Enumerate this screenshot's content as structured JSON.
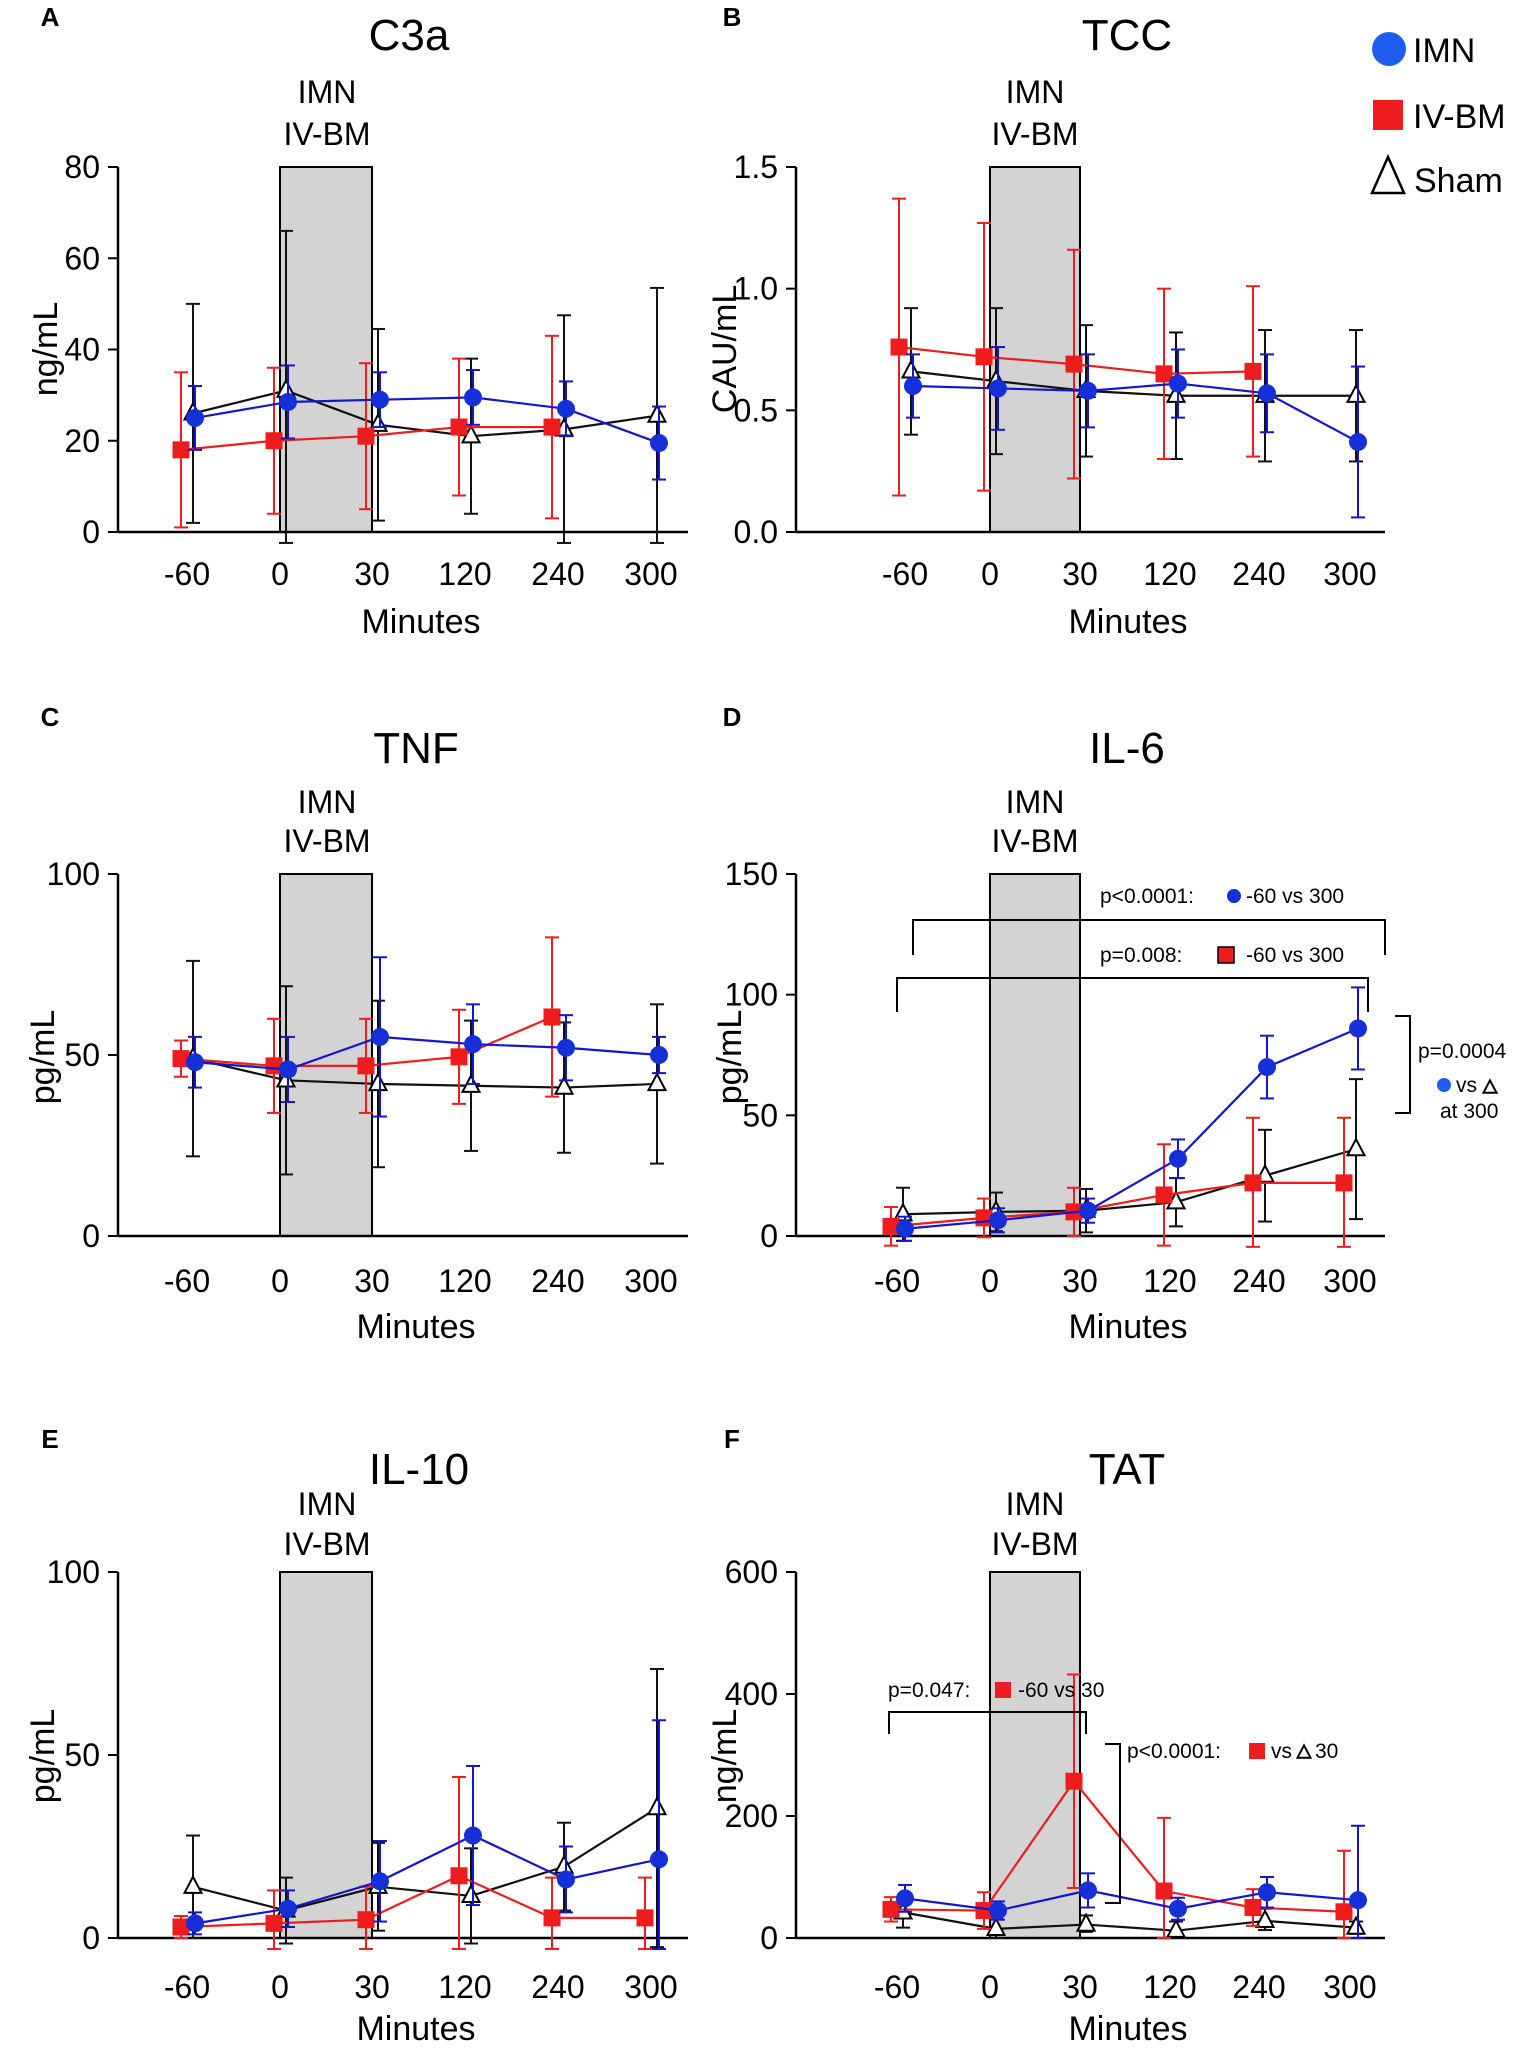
{
  "colors": {
    "IMN": "#1515cc",
    "IMN_marker": "#1530d8",
    "IMN_legend": "#1f5cf0",
    "IV-BM": "#ee1c1c",
    "Sham": "#111111",
    "shade": "#d3d3d3"
  },
  "legend": [
    {
      "name": "IMN",
      "marker": "circle"
    },
    {
      "name": "IV-BM",
      "marker": "square"
    },
    {
      "name": "Sham",
      "marker": "triangle"
    }
  ],
  "shade_label": [
    "IMN",
    "IV-BM"
  ],
  "chart_data": [
    {
      "panel": "A",
      "title": "C3a",
      "type": "line",
      "xlabel": "Minutes",
      "ylabel": "ng/mL",
      "x_categories": [
        "-60",
        "0",
        "30",
        "120",
        "240",
        "300"
      ],
      "ylim": [
        0,
        80
      ],
      "yticks": [
        0,
        20,
        40,
        60,
        80
      ],
      "shaded_interval": [
        "0",
        "30"
      ],
      "series": [
        {
          "name": "IMN",
          "values": [
            25,
            28.5,
            29,
            29.5,
            27,
            19.5
          ],
          "err_up": [
            7,
            8,
            6,
            6,
            6,
            8
          ],
          "err_down": [
            7,
            8,
            6,
            6,
            6,
            8
          ]
        },
        {
          "name": "IV-BM",
          "values": [
            18,
            20,
            21,
            23,
            23,
            null
          ],
          "err_up": [
            17,
            16,
            16,
            15,
            20,
            null
          ],
          "err_down": [
            17,
            16,
            16,
            15,
            20,
            null
          ]
        },
        {
          "name": "Sham",
          "values": [
            26,
            31,
            23.5,
            21,
            22.5,
            25.5
          ],
          "err_up": [
            24,
            35,
            21,
            17,
            25,
            28
          ],
          "err_down": [
            24,
            35,
            21,
            17,
            25,
            28
          ]
        }
      ]
    },
    {
      "panel": "B",
      "title": "TCC",
      "type": "line",
      "xlabel": "Minutes",
      "ylabel": "CAU/mL",
      "x_categories": [
        "-60",
        "0",
        "30",
        "120",
        "240",
        "300"
      ],
      "ylim": [
        0,
        1.5
      ],
      "yticks": [
        0.0,
        0.5,
        1.0,
        1.5
      ],
      "ytick_labels": [
        "0.0",
        "0.5",
        "1.0",
        "1.5"
      ],
      "shaded_interval": [
        "0",
        "30"
      ],
      "series": [
        {
          "name": "IMN",
          "values": [
            0.6,
            0.59,
            0.58,
            0.61,
            0.57,
            0.37
          ],
          "err_up": [
            0.13,
            0.17,
            0.15,
            0.14,
            0.16,
            0.31
          ],
          "err_down": [
            0.13,
            0.17,
            0.15,
            0.14,
            0.16,
            0.31
          ]
        },
        {
          "name": "IV-BM",
          "values": [
            0.76,
            0.72,
            0.69,
            0.65,
            0.66,
            null
          ],
          "err_up": [
            0.61,
            0.55,
            0.47,
            0.35,
            0.35,
            null
          ],
          "err_down": [
            0.61,
            0.55,
            0.47,
            0.35,
            0.35,
            null
          ]
        },
        {
          "name": "Sham",
          "values": [
            0.66,
            0.62,
            0.58,
            0.56,
            0.56,
            0.56
          ],
          "err_up": [
            0.26,
            0.3,
            0.27,
            0.26,
            0.27,
            0.27
          ],
          "err_down": [
            0.26,
            0.3,
            0.27,
            0.26,
            0.27,
            0.27
          ]
        }
      ]
    },
    {
      "panel": "C",
      "title": "TNF",
      "type": "line",
      "xlabel": "Minutes",
      "ylabel": "pg/mL",
      "x_categories": [
        "-60",
        "0",
        "30",
        "120",
        "240",
        "300"
      ],
      "ylim": [
        0,
        100
      ],
      "yticks": [
        0,
        50,
        100
      ],
      "shaded_interval": [
        "0",
        "30"
      ],
      "series": [
        {
          "name": "IMN",
          "values": [
            48,
            46,
            55,
            53,
            52,
            50
          ],
          "err_up": [
            7,
            9,
            22,
            11,
            9,
            5
          ],
          "err_down": [
            7,
            9,
            22,
            11,
            9,
            5
          ]
        },
        {
          "name": "IV-BM",
          "values": [
            49,
            47,
            47,
            49.5,
            60.5,
            null
          ],
          "err_up": [
            5,
            13,
            13,
            13,
            22,
            null
          ],
          "err_down": [
            5,
            13,
            13,
            13,
            22,
            null
          ]
        },
        {
          "name": "Sham",
          "values": [
            49,
            43,
            42,
            41.5,
            41,
            42
          ],
          "err_up": [
            27,
            26,
            23,
            18,
            18,
            22
          ],
          "err_down": [
            27,
            26,
            23,
            18,
            18,
            22
          ]
        }
      ]
    },
    {
      "panel": "D",
      "title": "IL-6",
      "type": "line",
      "xlabel": "Minutes",
      "ylabel": "pg/mL",
      "x_categories": [
        "-60",
        "0",
        "30",
        "120",
        "240",
        "300"
      ],
      "ylim": [
        0,
        150
      ],
      "yticks": [
        0,
        50,
        100,
        150
      ],
      "shaded_interval": [
        "0",
        "30"
      ],
      "series": [
        {
          "name": "IMN",
          "values": [
            3,
            6.5,
            10.5,
            32,
            70,
            86
          ],
          "err_up": [
            5,
            5,
            5,
            8,
            13,
            17
          ],
          "err_down": [
            5,
            5,
            5,
            8,
            13,
            17
          ]
        },
        {
          "name": "IV-BM",
          "values": [
            4,
            7.5,
            10,
            17,
            22,
            22
          ],
          "err_up": [
            8,
            8,
            10,
            21,
            27,
            27
          ],
          "err_down": [
            8,
            8,
            10,
            21,
            27,
            27
          ]
        },
        {
          "name": "Sham",
          "values": [
            9,
            10,
            10.5,
            14,
            25,
            36
          ],
          "err_up": [
            11,
            8,
            9,
            10,
            19,
            29
          ],
          "err_down": [
            11,
            8,
            9,
            10,
            19,
            29
          ]
        }
      ],
      "annotations": [
        {
          "text": "p<0.0001:",
          "suffix": "-60 vs 300",
          "marker": "circle",
          "series": "IMN"
        },
        {
          "text": "p=0.008:",
          "suffix": "-60 vs 300",
          "marker": "square",
          "series": "IV-BM"
        },
        {
          "text": "p=0.0004",
          "line2": "vs",
          "line3": "at 300",
          "markers": [
            "circle",
            "triangle"
          ]
        }
      ]
    },
    {
      "panel": "E",
      "title": "IL-10",
      "type": "line",
      "xlabel": "Minutes",
      "ylabel": "pg/mL",
      "x_categories": [
        "-60",
        "0",
        "30",
        "120",
        "240",
        "300"
      ],
      "ylim": [
        0,
        100
      ],
      "yticks": [
        0,
        50,
        100
      ],
      "shaded_interval": [
        "0",
        "30"
      ],
      "series": [
        {
          "name": "IMN",
          "values": [
            4,
            8,
            15.5,
            28,
            16,
            21.5
          ],
          "err_up": [
            3,
            5,
            11,
            19,
            9,
            38
          ],
          "err_down": [
            3,
            5,
            11,
            19,
            9,
            38
          ]
        },
        {
          "name": "IV-BM",
          "values": [
            3,
            4,
            5,
            17,
            5.5,
            5.5
          ],
          "err_up": [
            3,
            9,
            9,
            27,
            11,
            11
          ],
          "err_down": [
            3,
            9,
            9,
            27,
            11,
            11
          ]
        },
        {
          "name": "Sham",
          "values": [
            14,
            7.5,
            14,
            11.5,
            19.5,
            35.5
          ],
          "err_up": [
            14,
            9,
            12,
            13,
            12,
            38
          ],
          "err_down": [
            14,
            9,
            12,
            13,
            12,
            38
          ]
        }
      ]
    },
    {
      "panel": "F",
      "title": "TAT",
      "type": "line",
      "xlabel": "Minutes",
      "ylabel": "ng/mL",
      "x_categories": [
        "-60",
        "0",
        "30",
        "120",
        "240",
        "300"
      ],
      "ylim": [
        0,
        600
      ],
      "yticks": [
        0,
        200,
        400,
        600
      ],
      "shaded_interval": [
        "0",
        "30"
      ],
      "series": [
        {
          "name": "IMN",
          "values": [
            65,
            45,
            78,
            48,
            75,
            62
          ],
          "err_up": [
            22,
            15,
            28,
            18,
            25,
            122
          ],
          "err_down": [
            22,
            15,
            28,
            18,
            25,
            62
          ]
        },
        {
          "name": "IV-BM",
          "values": [
            47,
            45,
            257,
            77,
            50,
            43
          ],
          "err_up": [
            20,
            30,
            175,
            120,
            30,
            100
          ],
          "err_down": [
            20,
            30,
            175,
            77,
            30,
            43
          ]
        },
        {
          "name": "Sham",
          "values": [
            42,
            15,
            22,
            12,
            28,
            17
          ],
          "err_up": [
            25,
            18,
            15,
            15,
            20,
            10
          ],
          "err_down": [
            25,
            15,
            12,
            10,
            15,
            10
          ]
        }
      ],
      "annotations": [
        {
          "text": "p=0.047:",
          "suffix": "-60 vs 30",
          "marker": "square",
          "series": "IV-BM"
        },
        {
          "text": "p<0.0001:",
          "suffix": "vs",
          "suffix2": "30",
          "markers": [
            "square",
            "triangle"
          ]
        }
      ]
    }
  ]
}
